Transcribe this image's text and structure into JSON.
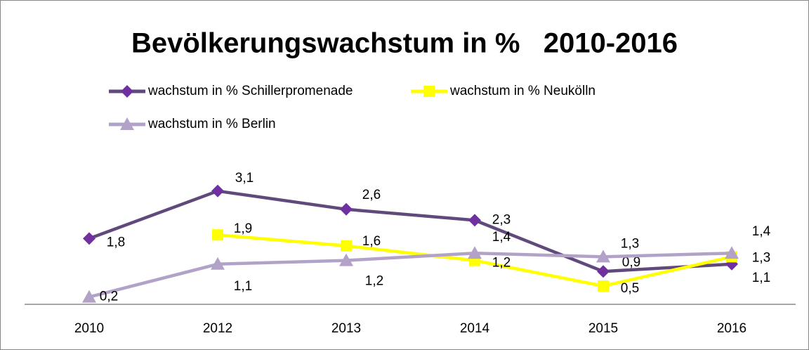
{
  "chart_data": {
    "type": "line",
    "title": "Bevölkerungswachstum in %   2010-2016",
    "categories": [
      "2010",
      "2012",
      "2013",
      "2014",
      "2015",
      "2016"
    ],
    "ylim": [
      0,
      3.5
    ],
    "grid": false,
    "legend": "top",
    "series": [
      {
        "name": "wachstum in % Schillerpromenade",
        "color": "#604a7b",
        "marker_color": "#7030a0",
        "marker": "diamond",
        "values": [
          1.8,
          3.1,
          2.6,
          2.3,
          0.9,
          1.1
        ],
        "value_labels": [
          "1,8",
          "3,1",
          "2,6",
          "2,3",
          "0,9",
          "1,1"
        ]
      },
      {
        "name": "wachstum in % Neukölln",
        "color": "#ffff00",
        "marker_color": "#ffff00",
        "marker": "square",
        "values": [
          null,
          1.9,
          1.6,
          1.2,
          0.5,
          1.3
        ],
        "value_labels": [
          null,
          "1,9",
          "1,6",
          "1,2",
          "0,5",
          "1,3"
        ]
      },
      {
        "name": "wachstum in % Berlin",
        "color": "#b3a2c7",
        "marker_color": "#b3a2c7",
        "marker": "triangle",
        "values": [
          0.2,
          1.1,
          1.2,
          1.4,
          1.3,
          1.4
        ],
        "value_labels": [
          "0,2",
          "1,1",
          "1,2",
          "1,4",
          "1,3",
          "1,4"
        ]
      }
    ]
  }
}
